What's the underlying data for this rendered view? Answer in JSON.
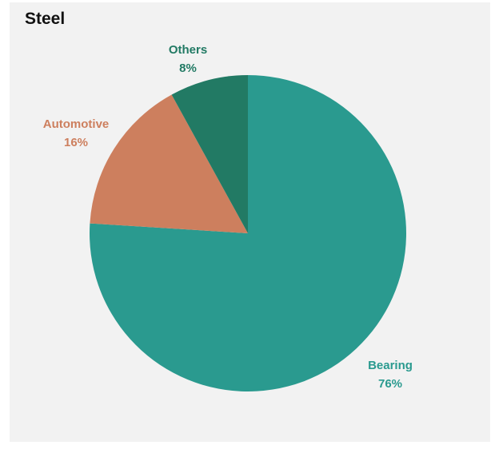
{
  "chart_data": {
    "type": "pie",
    "title": "Steel",
    "categories": [
      "Bearing",
      "Automotive",
      "Others"
    ],
    "values": [
      76,
      16,
      8
    ],
    "value_labels": [
      "76%",
      "16%",
      "8%"
    ],
    "colors": [
      "#2a9a8f",
      "#cd7f5e",
      "#227a64"
    ],
    "label_colors": [
      "#2a9a8f",
      "#cd7f5e",
      "#227a64"
    ],
    "start_angle": "12 o'clock",
    "direction": "clockwise",
    "legend": "none"
  }
}
